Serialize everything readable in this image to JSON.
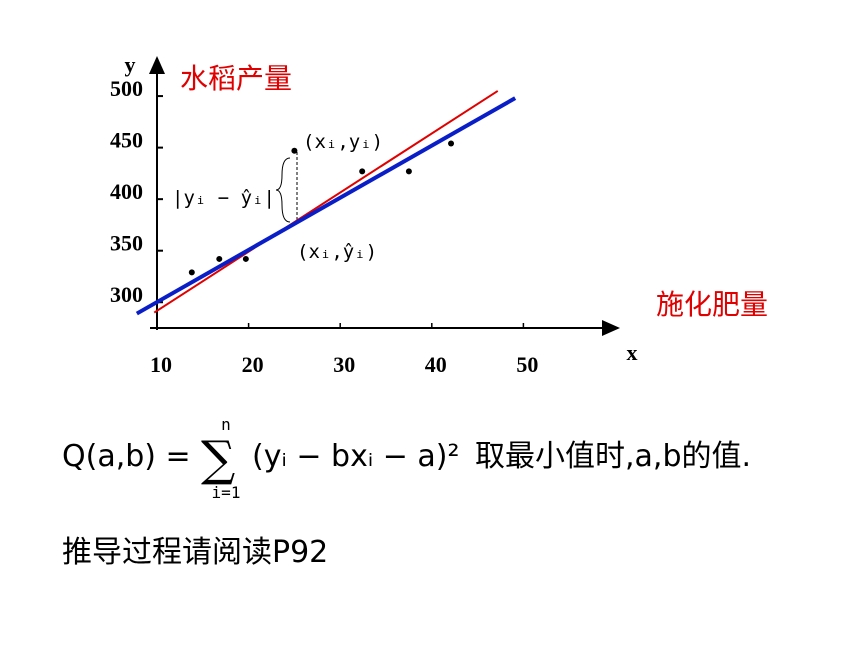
{
  "chart_data": {
    "type": "scatter",
    "x_label": "x",
    "y_label": "y",
    "y_axis_title": "水稻产量",
    "x_axis_title": "施化肥量",
    "xlim": [
      10,
      60
    ],
    "xticks": [
      10,
      20,
      30,
      40,
      50
    ],
    "ylim": [
      275,
      535
    ],
    "yticks": [
      300,
      350,
      400,
      450,
      500
    ],
    "series": [
      {
        "type": "scatter",
        "color": "#000000",
        "x": [
          13.8,
          16.8,
          19.7,
          25,
          32.4,
          37.5,
          42.1
        ],
        "values": [
          329,
          342,
          342,
          447,
          427,
          427,
          454
        ]
      },
      {
        "type": "line",
        "color": "#e00000",
        "x": [
          9.7,
          47.2
        ],
        "values": [
          290,
          505
        ]
      },
      {
        "type": "line",
        "color": "#0a1ec8",
        "x": [
          7.8,
          49.1
        ],
        "values": [
          289,
          498
        ]
      }
    ],
    "annotations": [
      "(xᵢ,yᵢ)",
      "|yᵢ − ŷᵢ|",
      "(xᵢ,ŷᵢ)"
    ]
  },
  "formula": {
    "left": "Q(a,b) =",
    "sigma": "∑",
    "upper": "n",
    "lower": "i=1",
    "right": "(yᵢ − bxᵢ − a)²",
    "tail": "取最小值时,a,b的值."
  },
  "note": "推导过程请阅读P92"
}
